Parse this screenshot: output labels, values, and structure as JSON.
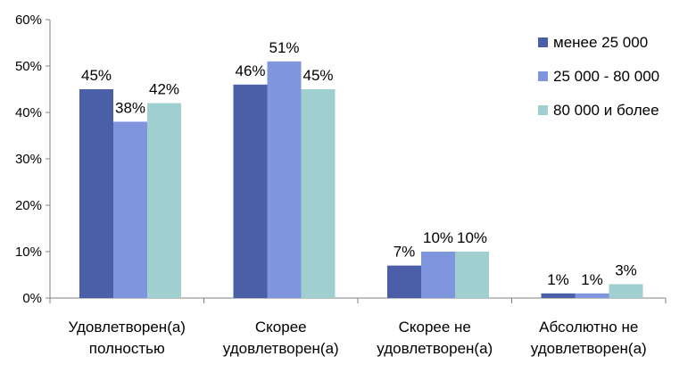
{
  "chart_data": {
    "type": "bar",
    "categories": [
      [
        "Удовлетворен(а)",
        "полностью"
      ],
      [
        "Скорее",
        "удовлетворен(а)"
      ],
      [
        "Скорее не",
        "удовлетворен(а)"
      ],
      [
        "Абсолютно не",
        "удовлетворен(а)"
      ]
    ],
    "series": [
      {
        "name": "менее 25 000",
        "values": [
          45,
          46,
          7,
          1
        ],
        "labels": [
          "45%",
          "46%",
          "7%",
          "1%"
        ],
        "color": "#4a5fa8"
      },
      {
        "name": "25 000 - 80 000",
        "values": [
          38,
          51,
          10,
          1
        ],
        "labels": [
          "38%",
          "51%",
          "10%",
          "1%"
        ],
        "color": "#7f95de"
      },
      {
        "name": "80 000 и более",
        "values": [
          42,
          45,
          10,
          3
        ],
        "labels": [
          "42%",
          "45%",
          "10%",
          "3%"
        ],
        "color": "#9fd0cf"
      }
    ],
    "y_ticks": [
      "0%",
      "10%",
      "20%",
      "30%",
      "40%",
      "50%",
      "60%"
    ],
    "ylim": [
      0,
      60
    ],
    "title": "",
    "xlabel": "",
    "ylabel": "",
    "grid": false,
    "legend_position": "top-right"
  }
}
